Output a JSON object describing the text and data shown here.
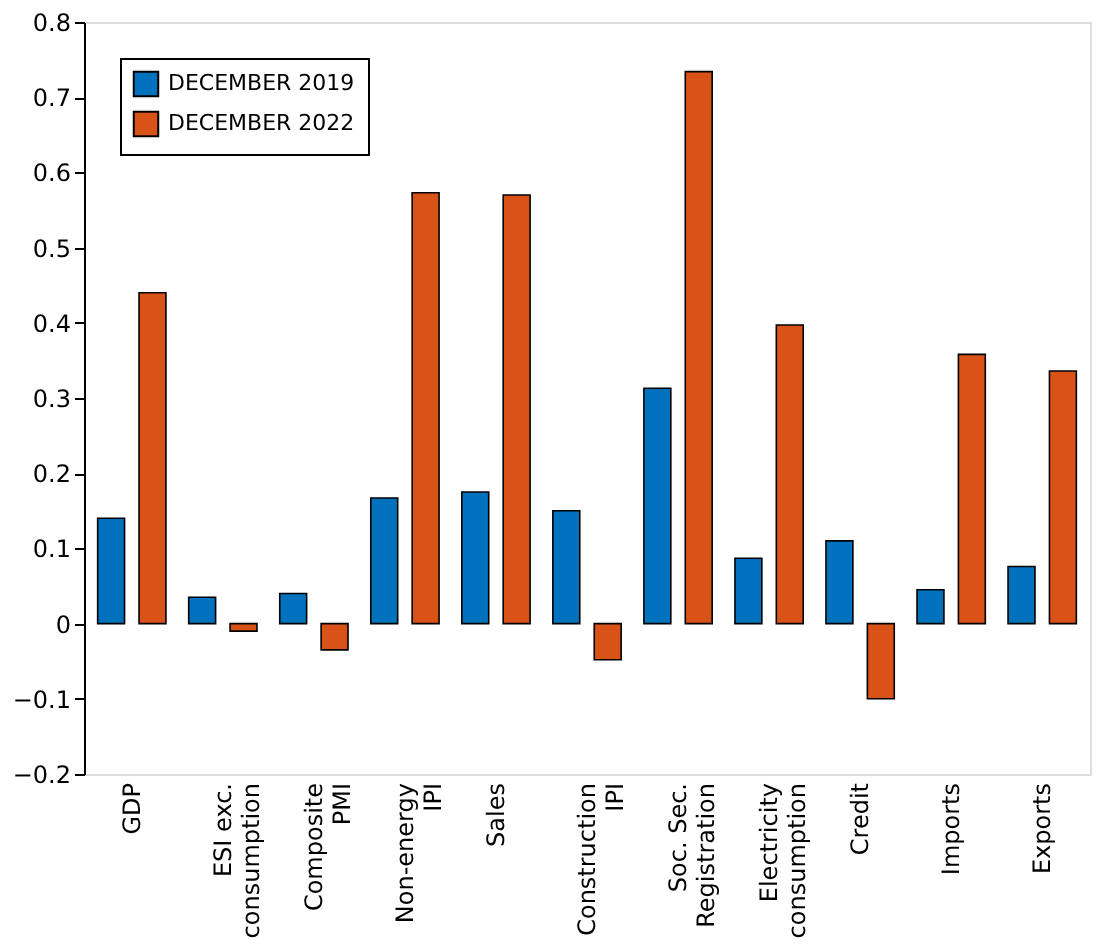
{
  "chart_data": {
    "type": "bar",
    "categories": [
      "GDP",
      "ESI exc.\nconsumption",
      "Composite\nPMI",
      "Non-energy\nIPI",
      "Sales",
      "Construction\nIPI",
      "Soc. Sec.\nRegistration",
      "Electricity\nconsumption",
      "Credit",
      "Imports",
      "Exports"
    ],
    "series": [
      {
        "name": "DECEMBER 2019",
        "color": "#0072bd",
        "values": [
          0.14,
          0.035,
          0.04,
          0.167,
          0.175,
          0.15,
          0.313,
          0.087,
          0.11,
          0.045,
          0.076
        ]
      },
      {
        "name": "DECEMBER 2022",
        "color": "#d95319",
        "values": [
          0.44,
          -0.01,
          -0.035,
          0.573,
          0.57,
          -0.048,
          0.734,
          0.397,
          -0.1,
          0.358,
          0.336
        ]
      }
    ],
    "ylim": [
      -0.2,
      0.8
    ],
    "yticks": [
      -0.2,
      -0.1,
      0,
      0.1,
      0.2,
      0.3,
      0.4,
      0.5,
      0.6,
      0.7,
      0.8
    ],
    "legend": "top left",
    "grid": false
  }
}
